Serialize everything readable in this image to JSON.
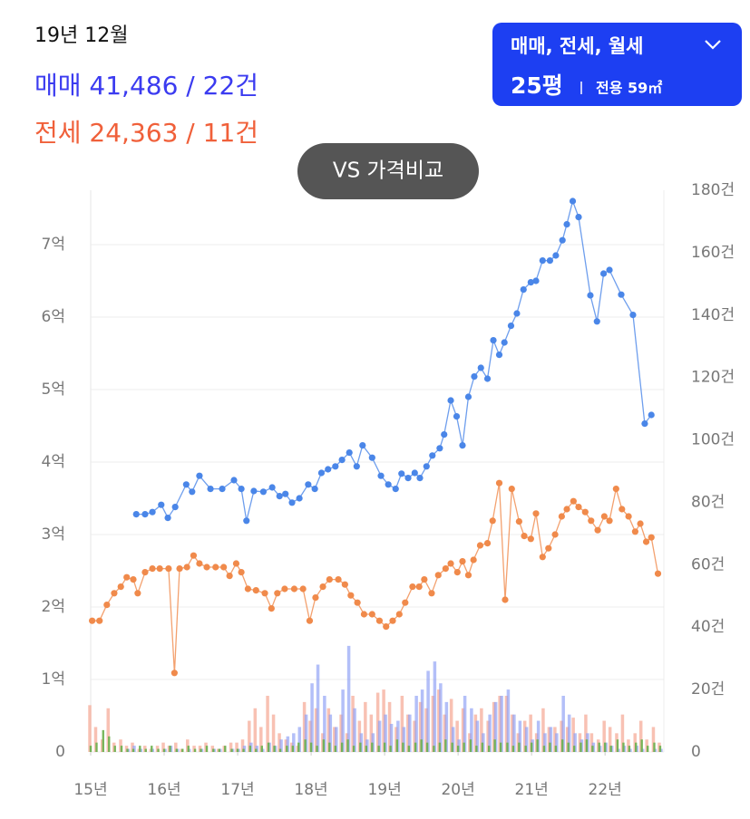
{
  "chart_data": {
    "type": "line",
    "period": "19년 12월",
    "sale_summary": "매매 41,486 / 22건",
    "jeonse_summary": "전세 24,363 / 11건",
    "compare_button": "VS 가격비교",
    "filter": {
      "types": "매매, 전세, 월세",
      "size": "25평",
      "area": "전용 59㎡"
    },
    "xlim": [
      15,
      22.8
    ],
    "xticks": [
      {
        "value": 15,
        "label": "15년"
      },
      {
        "value": 16,
        "label": "16년"
      },
      {
        "value": 17,
        "label": "17년"
      },
      {
        "value": 18,
        "label": "18년"
      },
      {
        "value": 19,
        "label": "19년"
      },
      {
        "value": 20,
        "label": "20년"
      },
      {
        "value": 21,
        "label": "21년"
      },
      {
        "value": 22,
        "label": "22년"
      }
    ],
    "ylim": [
      0,
      7.75
    ],
    "yticks": [
      0,
      {
        "value": 1,
        "label": "1억"
      },
      {
        "value": 2,
        "label": "2억"
      },
      {
        "value": 3,
        "label": "3억"
      },
      {
        "value": 4,
        "label": "4억"
      },
      {
        "value": 5,
        "label": "5억"
      },
      {
        "value": 6,
        "label": "6억"
      },
      {
        "value": 7,
        "label": "7억"
      }
    ],
    "y2lim": [
      0,
      180
    ],
    "y2ticks": [
      0,
      {
        "value": 20,
        "label": "20건"
      },
      {
        "value": 40,
        "label": "40건"
      },
      {
        "value": 60,
        "label": "60건"
      },
      {
        "value": 80,
        "label": "80건"
      },
      {
        "value": 100,
        "label": "100건"
      },
      {
        "value": 120,
        "label": "120건"
      },
      {
        "value": 140,
        "label": "140건"
      },
      {
        "value": 160,
        "label": "160건"
      },
      {
        "value": 180,
        "label": "180건"
      }
    ],
    "grid": true,
    "series": [
      {
        "color": "#4a86e8",
        "x": [
          15.62,
          15.74,
          15.84,
          15.96,
          16.05,
          16.15,
          16.3,
          16.38,
          16.48,
          16.63,
          16.79,
          16.95,
          17.05,
          17.12,
          17.22,
          17.35,
          17.47,
          17.57,
          17.65,
          17.74,
          17.84,
          17.96,
          18.05,
          18.14,
          18.23,
          18.33,
          18.42,
          18.52,
          18.62,
          18.7,
          18.83,
          18.95,
          19.05,
          19.15,
          19.23,
          19.32,
          19.41,
          19.48,
          19.57,
          19.65,
          19.75,
          19.81,
          19.9,
          19.98,
          20.06,
          20.14,
          20.22,
          20.31,
          20.4,
          20.48,
          20.56,
          20.63,
          20.72,
          20.8,
          20.89,
          20.99,
          21.06,
          21.15,
          21.25,
          21.33,
          21.42,
          21.48,
          21.56,
          21.64,
          21.8,
          21.89,
          21.98,
          22.06,
          22.22,
          22.38,
          22.54,
          22.63
        ],
        "values": [
          3.28,
          3.28,
          3.31,
          3.41,
          3.23,
          3.38,
          3.69,
          3.59,
          3.81,
          3.63,
          3.63,
          3.75,
          3.63,
          3.19,
          3.6,
          3.59,
          3.65,
          3.53,
          3.56,
          3.44,
          3.5,
          3.69,
          3.63,
          3.85,
          3.9,
          3.94,
          4.03,
          4.13,
          3.94,
          4.23,
          4.06,
          3.81,
          3.69,
          3.63,
          3.84,
          3.78,
          3.85,
          3.78,
          3.94,
          4.09,
          4.19,
          4.38,
          4.85,
          4.63,
          4.23,
          4.9,
          5.18,
          5.3,
          5.15,
          5.68,
          5.48,
          5.65,
          5.88,
          6.05,
          6.38,
          6.48,
          6.5,
          6.78,
          6.78,
          6.85,
          7.06,
          7.28,
          7.6,
          7.38,
          6.3,
          5.94,
          6.6,
          6.65,
          6.31,
          6.03,
          4.53,
          4.65
        ]
      },
      {
        "color": "#f08a4b",
        "x": [
          15.02,
          15.12,
          15.22,
          15.32,
          15.41,
          15.49,
          15.58,
          15.64,
          15.74,
          15.84,
          15.94,
          16.06,
          16.14,
          16.21,
          16.31,
          16.4,
          16.48,
          16.58,
          16.7,
          16.81,
          16.89,
          16.98,
          17.05,
          17.14,
          17.25,
          17.37,
          17.46,
          17.54,
          17.64,
          17.77,
          17.89,
          17.98,
          18.06,
          18.16,
          18.25,
          18.37,
          18.46,
          18.54,
          18.63,
          18.72,
          18.83,
          18.93,
          19.02,
          19.11,
          19.2,
          19.28,
          19.38,
          19.47,
          19.54,
          19.64,
          19.73,
          19.83,
          19.9,
          19.99,
          20.06,
          20.14,
          20.21,
          20.3,
          20.4,
          20.47,
          20.56,
          20.64,
          20.73,
          20.83,
          20.9,
          20.99,
          21.06,
          21.15,
          21.23,
          21.32,
          21.41,
          21.48,
          21.57,
          21.64,
          21.73,
          21.81,
          21.9,
          21.99,
          22.06,
          22.15,
          22.23,
          22.32,
          22.41,
          22.48,
          22.56,
          22.63,
          22.72
        ],
        "values": [
          1.81,
          1.81,
          2.03,
          2.19,
          2.28,
          2.41,
          2.38,
          2.19,
          2.48,
          2.53,
          2.53,
          2.53,
          1.09,
          2.53,
          2.55,
          2.71,
          2.6,
          2.55,
          2.55,
          2.55,
          2.43,
          2.6,
          2.48,
          2.25,
          2.23,
          2.19,
          1.98,
          2.19,
          2.25,
          2.25,
          2.25,
          1.81,
          2.13,
          2.28,
          2.38,
          2.38,
          2.31,
          2.16,
          2.06,
          1.9,
          1.9,
          1.81,
          1.73,
          1.81,
          1.9,
          2.06,
          2.28,
          2.28,
          2.38,
          2.19,
          2.44,
          2.53,
          2.6,
          2.48,
          2.63,
          2.44,
          2.65,
          2.85,
          2.88,
          3.19,
          3.71,
          2.1,
          3.63,
          3.18,
          2.98,
          2.94,
          3.29,
          2.69,
          2.81,
          3.0,
          3.25,
          3.35,
          3.46,
          3.38,
          3.31,
          3.19,
          3.06,
          3.25,
          3.19,
          3.63,
          3.35,
          3.25,
          3.04,
          3.15,
          2.9,
          2.96,
          2.46
        ]
      }
    ],
    "bars": {
      "x": [
        15,
        15.08,
        15.17,
        15.25,
        15.33,
        15.42,
        15.5,
        15.58,
        15.67,
        15.75,
        15.83,
        15.92,
        16,
        16.08,
        16.17,
        16.25,
        16.33,
        16.42,
        16.5,
        16.58,
        16.67,
        16.75,
        16.83,
        16.92,
        17,
        17.08,
        17.17,
        17.25,
        17.33,
        17.42,
        17.5,
        17.58,
        17.67,
        17.75,
        17.83,
        17.92,
        18,
        18.08,
        18.17,
        18.25,
        18.33,
        18.42,
        18.5,
        18.58,
        18.67,
        18.75,
        18.83,
        18.92,
        19,
        19.08,
        19.17,
        19.25,
        19.33,
        19.42,
        19.5,
        19.58,
        19.67,
        19.75,
        19.83,
        19.92,
        20,
        20.08,
        20.17,
        20.25,
        20.33,
        20.42,
        20.5,
        20.58,
        20.67,
        20.75,
        20.83,
        20.92,
        21,
        21.08,
        21.17,
        21.25,
        21.33,
        21.42,
        21.5,
        21.58,
        21.67,
        21.75,
        21.83,
        21.92,
        22,
        22.08,
        22.17,
        22.25,
        22.33,
        22.42,
        22.5,
        22.58,
        22.67,
        22.75
      ],
      "series": [
        {
          "color": "#f5a08a",
          "axis": "y2",
          "values": [
            15,
            8,
            4,
            14,
            3,
            4,
            2,
            3,
            1,
            2,
            1,
            2,
            3,
            2,
            3,
            1,
            4,
            2,
            2,
            3,
            2,
            1,
            2,
            3,
            3,
            4,
            10,
            14,
            8,
            18,
            12,
            6,
            4,
            3,
            2,
            16,
            10,
            14,
            6,
            14,
            8,
            12,
            6,
            18,
            10,
            16,
            12,
            19,
            20,
            16,
            8,
            18,
            12,
            10,
            16,
            14,
            18,
            20,
            12,
            17,
            10,
            14,
            6,
            12,
            14,
            10,
            16,
            18,
            18,
            12,
            6,
            10,
            12,
            6,
            14,
            8,
            8,
            10,
            8,
            11,
            6,
            12,
            6,
            4,
            10,
            8,
            6,
            12,
            4,
            6,
            10,
            4,
            8,
            3
          ]
        },
        {
          "color": "#8a9cf5",
          "axis": "y2",
          "values": [
            0,
            0,
            0,
            0,
            0,
            0,
            1,
            2,
            1,
            0,
            1,
            0,
            1,
            2,
            1,
            0,
            1,
            0,
            1,
            0,
            1,
            1,
            0,
            1,
            1,
            2,
            3,
            2,
            1,
            3,
            2,
            4,
            5,
            6,
            8,
            12,
            22,
            28,
            18,
            12,
            8,
            20,
            34,
            14,
            6,
            4,
            6,
            10,
            12,
            9,
            10,
            8,
            12,
            18,
            20,
            26,
            29,
            22,
            16,
            8,
            4,
            18,
            14,
            10,
            6,
            12,
            16,
            18,
            20,
            12,
            10,
            8,
            4,
            10,
            6,
            8,
            6,
            18,
            12,
            6,
            4,
            6,
            3,
            2,
            3,
            2,
            1,
            2,
            1,
            2,
            1,
            0,
            1,
            1
          ]
        },
        {
          "color": "#6ab04c",
          "axis": "y2",
          "values": [
            2,
            3,
            7,
            5,
            2,
            2,
            1,
            1,
            2,
            1,
            2,
            1,
            1,
            2,
            1,
            1,
            2,
            1,
            1,
            2,
            1,
            1,
            2,
            1,
            1,
            1,
            2,
            1,
            2,
            3,
            2,
            1,
            2,
            2,
            3,
            4,
            3,
            2,
            4,
            3,
            2,
            3,
            4,
            2,
            3,
            2,
            3,
            2,
            3,
            2,
            4,
            3,
            2,
            3,
            4,
            3,
            2,
            3,
            4,
            3,
            2,
            3,
            4,
            2,
            3,
            2,
            4,
            3,
            3,
            2,
            3,
            2,
            3,
            4,
            2,
            3,
            2,
            4,
            3,
            2,
            3,
            4,
            2,
            3,
            3,
            2,
            4,
            3,
            2,
            3,
            4,
            2,
            3,
            2
          ]
        }
      ]
    }
  }
}
